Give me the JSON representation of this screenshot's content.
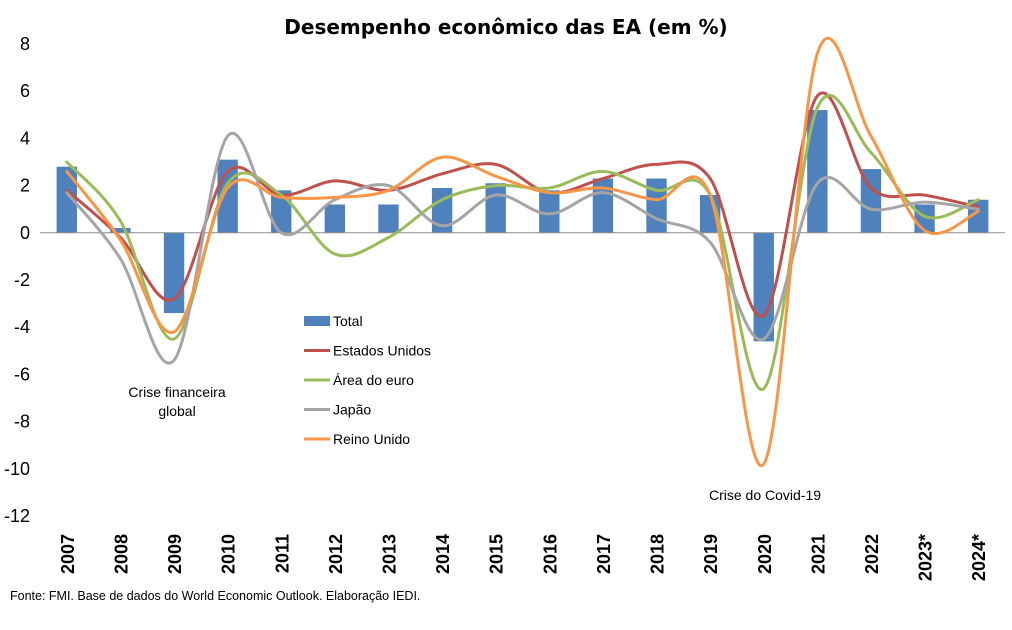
{
  "chart_data": {
    "type": "bar",
    "title": "Desempenho econômico das EA (em %)",
    "categories": [
      "2007",
      "2008",
      "2009",
      "2010",
      "2011",
      "2012",
      "2013",
      "2014",
      "2015",
      "2016",
      "2017",
      "2018",
      "2019",
      "2020",
      "2021",
      "2022",
      "2023*",
      "2024*"
    ],
    "ylim": [
      -12,
      8
    ],
    "yticks": [
      8,
      6,
      4,
      2,
      0,
      -2,
      -4,
      -6,
      -8,
      -10,
      -12
    ],
    "series": [
      {
        "name": "Total",
        "kind": "bar",
        "color": "#4f81bd",
        "values": [
          2.8,
          0.2,
          -3.4,
          3.1,
          1.8,
          1.2,
          1.2,
          1.9,
          2.1,
          1.8,
          2.3,
          2.3,
          1.6,
          -4.6,
          5.2,
          2.7,
          1.2,
          1.4
        ]
      },
      {
        "name": "Estados Unidos",
        "kind": "line",
        "color": "#c0504d",
        "values": [
          1.8,
          -0.2,
          -2.8,
          2.6,
          1.6,
          2.2,
          1.8,
          2.5,
          2.9,
          1.7,
          2.3,
          2.9,
          2.3,
          -3.5,
          5.8,
          1.9,
          1.6,
          1.1
        ]
      },
      {
        "name": "Área do euro",
        "kind": "line",
        "color": "#9bbb59",
        "values": [
          3.0,
          0.5,
          -4.5,
          2.1,
          1.6,
          -0.9,
          -0.2,
          1.4,
          2.0,
          1.9,
          2.6,
          1.8,
          1.6,
          -6.6,
          5.3,
          3.4,
          0.7,
          1.4
        ]
      },
      {
        "name": "Japão",
        "kind": "line",
        "color": "#a5a5a5",
        "values": [
          1.7,
          -1.1,
          -5.4,
          4.1,
          0.0,
          1.4,
          2.0,
          0.3,
          1.6,
          0.8,
          1.7,
          0.6,
          -0.4,
          -4.5,
          2.1,
          1.0,
          1.3,
          1.0
        ]
      },
      {
        "name": "Reino Unido",
        "kind": "line",
        "color": "#f79646",
        "values": [
          2.6,
          -0.3,
          -4.2,
          1.9,
          1.5,
          1.5,
          1.8,
          3.2,
          2.4,
          1.7,
          1.9,
          1.4,
          1.6,
          -9.8,
          7.6,
          4.1,
          0.1,
          0.9
        ]
      }
    ],
    "legend_position": "center-left",
    "annotations": [
      {
        "lines": [
          "Crise financeira",
          "global"
        ]
      },
      {
        "lines": [
          "Crise do Covid-19"
        ]
      }
    ],
    "grid": false
  },
  "source": "Fonte: FMI. Base de dados do World Economic Outlook. Elaboração IEDI."
}
